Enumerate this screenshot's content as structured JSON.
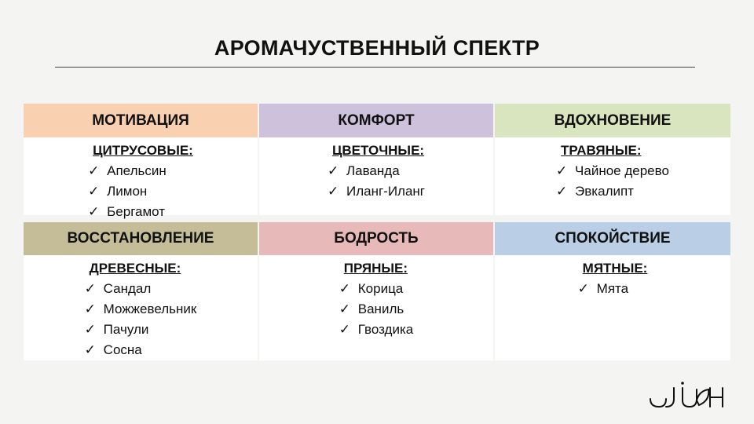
{
  "title": "АРОМАЧУСТВЕННЫЙ СПЕКТР",
  "sections": [
    {
      "label": "МОТИВАЦИЯ",
      "color": "#f9d0b0",
      "category": "ЦИТРУСОВЫЕ:",
      "items": [
        "Апельсин",
        "Лимон",
        "Бергамот"
      ]
    },
    {
      "label": "КОМФОРТ",
      "color": "#cdc1db",
      "category": "ЦВЕТОЧНЫЕ:",
      "items": [
        "Лаванда",
        "Иланг-Иланг"
      ]
    },
    {
      "label": "ВДОХНОВЕНИЕ",
      "color": "#d8e5be",
      "category": "ТРАВЯНЫЕ:",
      "items": [
        "Чайное дерево",
        "Эвкалипт"
      ]
    },
    {
      "label": "ВОССТАНОВЛЕНИЕ",
      "color": "#c5bd98",
      "category": "ДРЕВЕСНЫЕ:",
      "items": [
        "Сандал",
        "Можжевельник",
        "Пачули",
        "Сосна"
      ]
    },
    {
      "label": "БОДРОСТЬ",
      "color": "#e7b9b9",
      "category": "ПРЯНЫЕ:",
      "items": [
        "Корица",
        "Ваниль",
        "Гвоздика"
      ]
    },
    {
      "label": "СПОКОЙСТВИЕ",
      "color": "#bacee6",
      "category": "МЯТНЫЕ:",
      "items": [
        "Мята"
      ]
    }
  ],
  "check_icon": "✓",
  "logo_text": "JUAH"
}
